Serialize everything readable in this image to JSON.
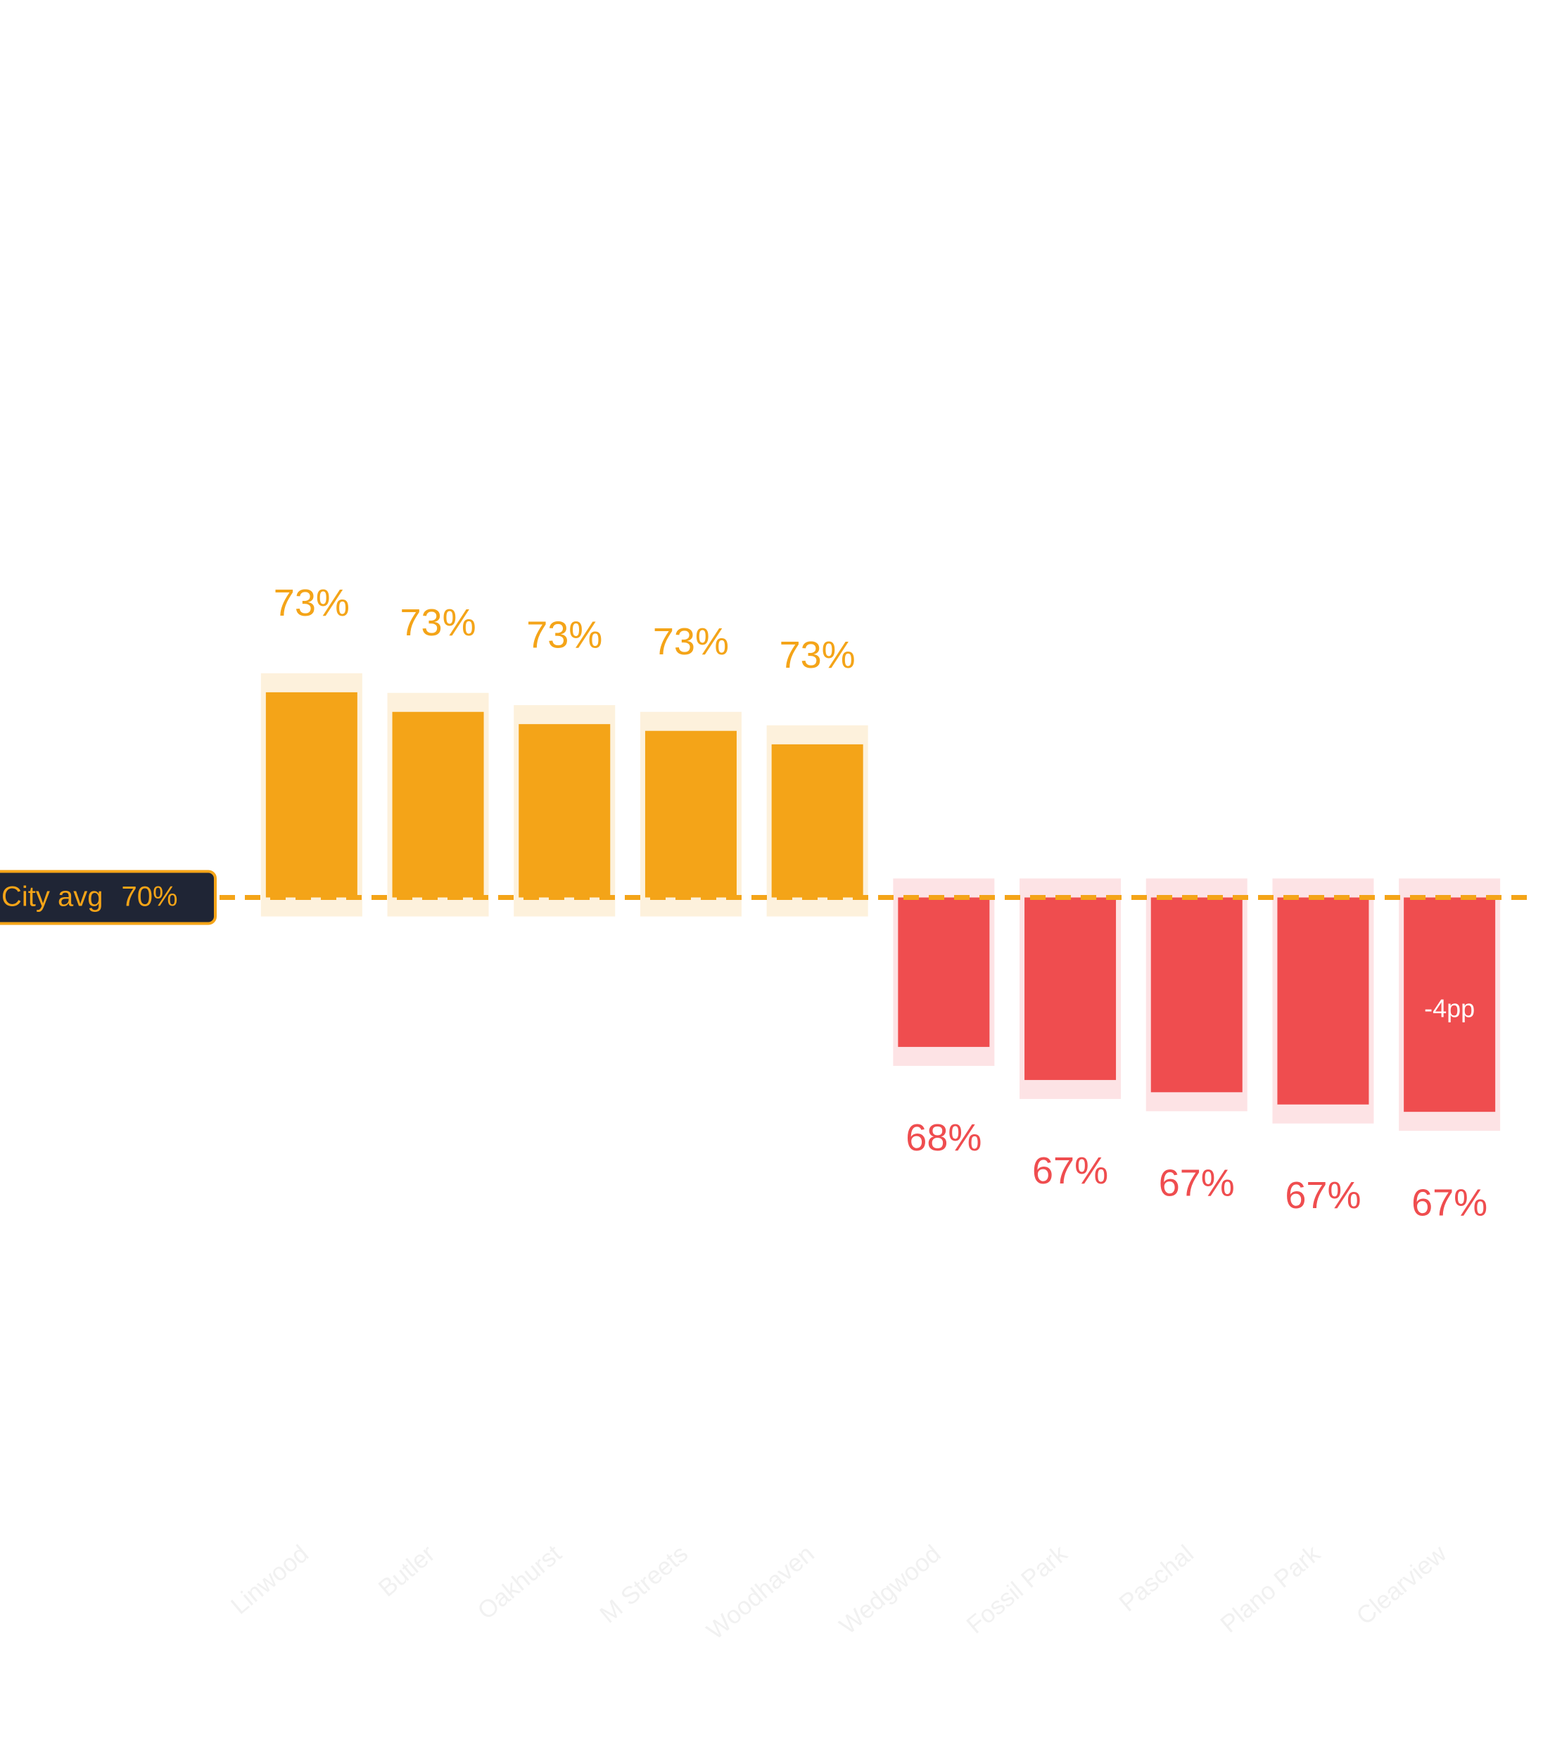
{
  "chart_data": {
    "type": "diverging-bar",
    "categories": [
      "Linwood",
      "Butler",
      "Oakhurst",
      "M Streets",
      "Woodhaven",
      "Wedgwood",
      "Fossil Park",
      "Paschal",
      "Plano Park",
      "Clearview"
    ],
    "values": [
      73.35,
      73.03,
      72.83,
      72.72,
      72.5,
      67.56,
      67.02,
      66.82,
      66.62,
      66.5
    ],
    "value_labels": [
      "73%",
      "73%",
      "73%",
      "73%",
      "73%",
      "68%",
      "67%",
      "67%",
      "67%",
      "67%"
    ],
    "reference": {
      "label": "City avg",
      "value": 70,
      "value_label": "70%"
    },
    "annotation": {
      "text": "-4pp",
      "index": 9
    },
    "ylim": [
      60,
      80
    ],
    "color_above": "#f4a418",
    "color_below": "#ef4d4f",
    "shade_above": "#fdf1dc",
    "shade_below": "#fde3e5"
  }
}
